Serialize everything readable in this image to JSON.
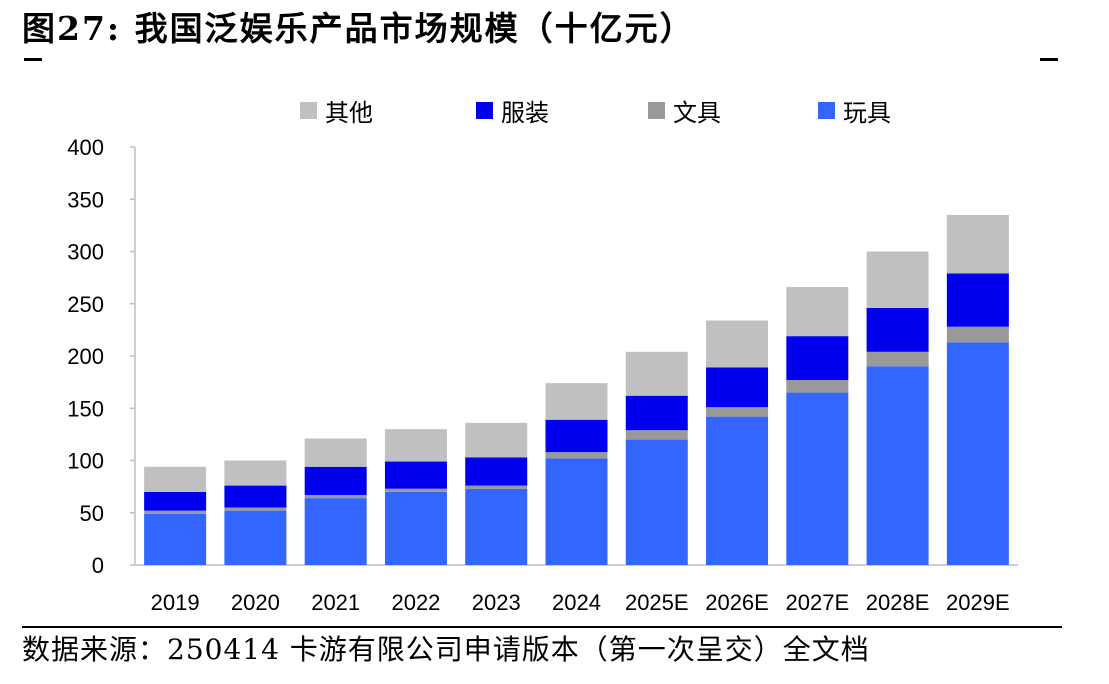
{
  "title": "图27:  我国泛娱乐产品市场规模（十亿元）",
  "source": "数据来源：250414 卡游有限公司申请版本（第一次呈交）全文档",
  "colors": {
    "toys": "#3366ff",
    "stationery": "#999999",
    "apparel": "#0000ee",
    "other": "#c0c0c0"
  },
  "legend": [
    {
      "name": "其他",
      "color_key": "other"
    },
    {
      "name": "服装",
      "color_key": "apparel"
    },
    {
      "name": "文具",
      "color_key": "stationery"
    },
    {
      "name": "玩具",
      "color_key": "toys"
    }
  ],
  "chart_data": {
    "type": "bar",
    "stacked": true,
    "categories": [
      "2019",
      "2020",
      "2021",
      "2022",
      "2023",
      "2024",
      "2025E",
      "2026E",
      "2027E",
      "2028E",
      "2029E"
    ],
    "series": [
      {
        "name": "玩具",
        "color_key": "toys",
        "values": [
          49,
          52,
          64,
          70,
          73,
          102,
          120,
          142,
          165,
          190,
          213
        ]
      },
      {
        "name": "文具",
        "color_key": "stationery",
        "values": [
          3,
          3,
          3,
          3,
          3,
          6,
          9,
          9,
          12,
          14,
          15
        ]
      },
      {
        "name": "服装",
        "color_key": "apparel",
        "values": [
          18,
          21,
          27,
          26,
          27,
          31,
          33,
          38,
          42,
          42,
          51
        ]
      },
      {
        "name": "其他",
        "color_key": "other",
        "values": [
          24,
          24,
          27,
          31,
          33,
          35,
          42,
          45,
          47,
          54,
          56
        ]
      }
    ],
    "yticks": [
      0,
      50,
      100,
      150,
      200,
      250,
      300,
      350,
      400
    ],
    "ylim": [
      0,
      400
    ],
    "legend_position": "top",
    "grid": false
  }
}
